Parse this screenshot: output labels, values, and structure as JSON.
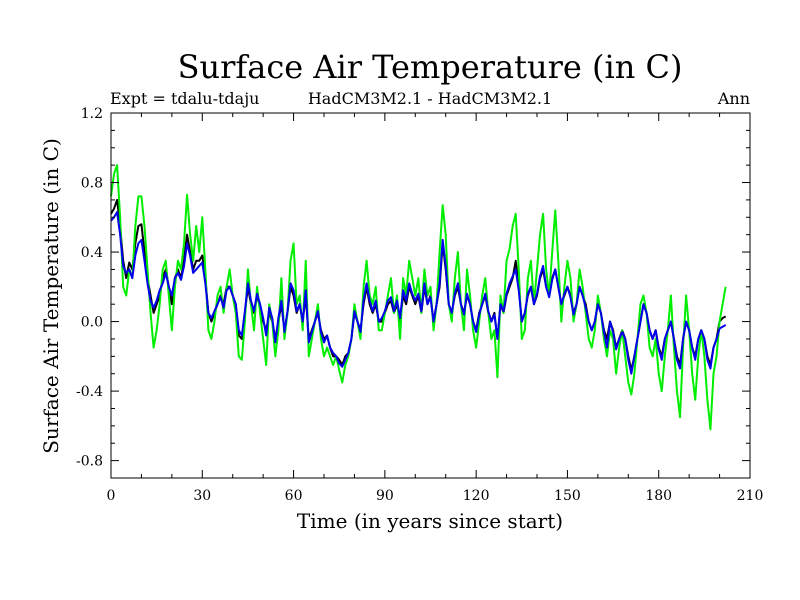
{
  "chart_data": {
    "type": "line",
    "title": "Surface Air Temperature (in C)",
    "subtitle_left": "Expt = tdalu-tdaju",
    "subtitle_center": "HadCM3M2.1 - HadCM3M2.1",
    "subtitle_right": "Ann",
    "xlabel": "Time (in years since start)",
    "ylabel": "Surface Air Temperature (in C)",
    "xlim": [
      0,
      210
    ],
    "ylim": [
      -0.9,
      1.2
    ],
    "xticks": [
      0,
      30,
      60,
      90,
      120,
      150,
      180,
      210
    ],
    "xtick_labels": [
      "0",
      "30",
      "60",
      "90",
      "120",
      "150",
      "180",
      "210"
    ],
    "yticks": [
      -0.8,
      -0.4,
      0.0,
      0.4,
      0.8,
      1.2
    ],
    "ytick_labels": [
      "-0.8",
      "-0.4",
      "0.0",
      "0.4",
      "0.8",
      "1.2"
    ],
    "colors": {
      "black": "#000000",
      "green": "#00ee00",
      "blue": "#0000ee"
    },
    "series": [
      {
        "name": "black",
        "color": "#000000",
        "x_start": 0,
        "values": [
          0.62,
          0.65,
          0.7,
          0.55,
          0.35,
          0.25,
          0.34,
          0.3,
          0.45,
          0.55,
          0.56,
          0.4,
          0.25,
          0.15,
          0.05,
          0.1,
          0.15,
          0.25,
          0.3,
          0.2,
          0.1,
          0.25,
          0.3,
          0.25,
          0.35,
          0.5,
          0.4,
          0.3,
          0.35,
          0.35,
          0.38,
          0.25,
          0.05,
          0.0,
          0.05,
          0.1,
          0.15,
          0.1,
          0.2,
          0.2,
          0.15,
          0.1,
          -0.08,
          -0.1,
          0.05,
          0.2,
          0.1,
          0.05,
          0.15,
          0.08,
          0.0,
          -0.05,
          0.05,
          0.0,
          -0.1,
          0.0,
          0.1,
          -0.05,
          0.05,
          0.2,
          0.15,
          0.05,
          0.1,
          0.0,
          0.15,
          -0.1,
          -0.05,
          0.0,
          0.05,
          -0.05,
          -0.1,
          -0.08,
          -0.15,
          -0.2,
          -0.2,
          -0.22,
          -0.25,
          -0.2,
          -0.18,
          -0.1,
          0.05,
          0.0,
          -0.05,
          0.1,
          0.2,
          0.1,
          0.05,
          0.1,
          0.0,
          0.0,
          0.05,
          0.1,
          0.12,
          0.05,
          0.1,
          0.0,
          0.15,
          0.1,
          0.2,
          0.15,
          0.1,
          0.15,
          0.05,
          0.2,
          0.1,
          0.15,
          0.0,
          0.1,
          0.2,
          0.45,
          0.3,
          0.1,
          0.05,
          0.15,
          0.2,
          0.1,
          0.05,
          0.15,
          0.1,
          0.0,
          -0.05,
          0.05,
          0.1,
          0.15,
          0.05,
          0.0,
          0.05,
          -0.1,
          0.1,
          0.05,
          0.15,
          0.2,
          0.25,
          0.35,
          0.2,
          0.0,
          0.05,
          0.15,
          0.2,
          0.1,
          0.15,
          0.25,
          0.3,
          0.2,
          0.15,
          0.25,
          0.3,
          0.2,
          0.1,
          0.15,
          0.2,
          0.15,
          0.05,
          0.1,
          0.2,
          0.15,
          0.1,
          0.0,
          -0.05,
          0.0,
          0.1,
          0.05,
          -0.05,
          -0.1,
          0.0,
          -0.05,
          -0.15,
          -0.1,
          -0.05,
          -0.1,
          -0.2,
          -0.28,
          -0.2,
          -0.1,
          0.0,
          0.1,
          0.05,
          -0.05,
          -0.1,
          -0.05,
          -0.15,
          -0.2,
          -0.1,
          -0.05,
          0.0,
          -0.1,
          -0.2,
          -0.25,
          -0.1,
          0.0,
          -0.05,
          -0.15,
          -0.2,
          -0.1,
          -0.05,
          -0.1,
          -0.2,
          -0.25,
          -0.15,
          -0.1,
          0.0,
          0.02,
          0.03
        ]
      },
      {
        "name": "green",
        "color": "#00ee00",
        "x_start": 0,
        "values": [
          0.72,
          0.85,
          0.9,
          0.6,
          0.2,
          0.15,
          0.3,
          0.25,
          0.55,
          0.72,
          0.72,
          0.55,
          0.3,
          0.05,
          -0.15,
          -0.05,
          0.1,
          0.3,
          0.35,
          0.15,
          -0.05,
          0.2,
          0.35,
          0.3,
          0.45,
          0.73,
          0.5,
          0.35,
          0.55,
          0.4,
          0.6,
          0.3,
          -0.05,
          -0.1,
          0.0,
          0.15,
          0.2,
          0.05,
          0.2,
          0.3,
          0.15,
          0.05,
          -0.2,
          -0.22,
          0.0,
          0.3,
          0.1,
          -0.05,
          0.2,
          0.05,
          -0.1,
          -0.25,
          0.1,
          0.0,
          -0.2,
          -0.05,
          0.25,
          -0.1,
          0.05,
          0.35,
          0.45,
          0.1,
          0.15,
          -0.05,
          0.35,
          -0.2,
          -0.1,
          0.0,
          0.1,
          -0.1,
          -0.2,
          -0.15,
          -0.2,
          -0.25,
          -0.2,
          -0.28,
          -0.35,
          -0.25,
          -0.2,
          -0.1,
          0.1,
          0.0,
          -0.1,
          0.2,
          0.35,
          0.15,
          0.1,
          0.2,
          -0.05,
          -0.05,
          0.05,
          0.15,
          0.25,
          0.05,
          0.15,
          -0.1,
          0.25,
          0.15,
          0.35,
          0.25,
          0.15,
          0.25,
          0.05,
          0.3,
          0.15,
          0.2,
          -0.05,
          0.1,
          0.4,
          0.67,
          0.5,
          0.1,
          0.0,
          0.25,
          0.4,
          0.1,
          -0.05,
          0.3,
          0.15,
          -0.05,
          -0.15,
          0.0,
          0.15,
          0.25,
          0.05,
          -0.1,
          -0.05,
          -0.32,
          0.15,
          0.05,
          0.35,
          0.42,
          0.55,
          0.62,
          0.3,
          -0.1,
          -0.05,
          0.25,
          0.35,
          0.1,
          0.3,
          0.5,
          0.62,
          0.3,
          0.15,
          0.4,
          0.64,
          0.35,
          0.0,
          0.2,
          0.35,
          0.25,
          0.0,
          0.1,
          0.3,
          0.2,
          0.05,
          -0.1,
          -0.15,
          -0.05,
          0.15,
          0.05,
          -0.1,
          -0.2,
          -0.05,
          -0.1,
          -0.3,
          -0.15,
          -0.05,
          -0.2,
          -0.35,
          -0.42,
          -0.3,
          -0.1,
          0.1,
          0.15,
          0.05,
          -0.15,
          -0.2,
          -0.1,
          -0.3,
          -0.4,
          -0.2,
          -0.05,
          0.15,
          -0.15,
          -0.4,
          -0.55,
          -0.15,
          0.15,
          -0.05,
          -0.3,
          -0.45,
          -0.2,
          -0.05,
          -0.2,
          -0.45,
          -0.62,
          -0.3,
          -0.2,
          0.0,
          0.1,
          0.2
        ]
      },
      {
        "name": "blue",
        "color": "#0000ee",
        "x_start": 0,
        "values": [
          0.58,
          0.6,
          0.63,
          0.5,
          0.32,
          0.28,
          0.3,
          0.25,
          0.38,
          0.45,
          0.47,
          0.35,
          0.22,
          0.12,
          0.08,
          0.12,
          0.18,
          0.22,
          0.28,
          0.2,
          0.15,
          0.25,
          0.28,
          0.24,
          0.32,
          0.45,
          0.38,
          0.28,
          0.3,
          0.32,
          0.34,
          0.22,
          0.05,
          0.02,
          0.06,
          0.1,
          0.14,
          0.08,
          0.18,
          0.2,
          0.15,
          0.1,
          -0.05,
          -0.08,
          0.06,
          0.22,
          0.12,
          0.06,
          0.16,
          0.1,
          0.02,
          -0.08,
          0.08,
          0.02,
          -0.12,
          0.02,
          0.12,
          -0.06,
          0.06,
          0.22,
          0.18,
          0.06,
          0.1,
          0.0,
          0.18,
          -0.12,
          -0.06,
          0.0,
          0.06,
          -0.06,
          -0.12,
          -0.08,
          -0.15,
          -0.18,
          -0.2,
          -0.24,
          -0.26,
          -0.22,
          -0.18,
          -0.1,
          0.06,
          0.0,
          -0.06,
          0.12,
          0.22,
          0.12,
          0.06,
          0.12,
          0.0,
          0.02,
          0.06,
          0.12,
          0.14,
          0.06,
          0.12,
          0.02,
          0.18,
          0.12,
          0.22,
          0.16,
          0.12,
          0.16,
          0.06,
          0.22,
          0.1,
          0.14,
          0.0,
          0.1,
          0.22,
          0.47,
          0.32,
          0.1,
          0.05,
          0.16,
          0.22,
          0.1,
          0.04,
          0.16,
          0.1,
          0.0,
          -0.06,
          0.04,
          0.1,
          0.16,
          0.06,
          0.0,
          0.04,
          -0.1,
          0.1,
          0.06,
          0.16,
          0.22,
          0.26,
          0.3,
          0.18,
          0.0,
          0.05,
          0.16,
          0.2,
          0.1,
          0.16,
          0.26,
          0.32,
          0.2,
          0.14,
          0.24,
          0.3,
          0.2,
          0.1,
          0.16,
          0.2,
          0.14,
          0.04,
          0.1,
          0.2,
          0.15,
          0.08,
          0.0,
          -0.05,
          0.0,
          0.1,
          0.05,
          -0.06,
          -0.15,
          0.0,
          -0.06,
          -0.16,
          -0.1,
          -0.06,
          -0.1,
          -0.22,
          -0.3,
          -0.2,
          -0.1,
          0.0,
          0.1,
          0.05,
          -0.05,
          -0.1,
          -0.05,
          -0.16,
          -0.22,
          -0.1,
          -0.05,
          0.0,
          -0.1,
          -0.22,
          -0.27,
          -0.1,
          0.0,
          -0.05,
          -0.15,
          -0.22,
          -0.1,
          -0.05,
          -0.1,
          -0.22,
          -0.27,
          -0.15,
          -0.1,
          -0.04,
          -0.03,
          -0.02
        ]
      }
    ]
  }
}
